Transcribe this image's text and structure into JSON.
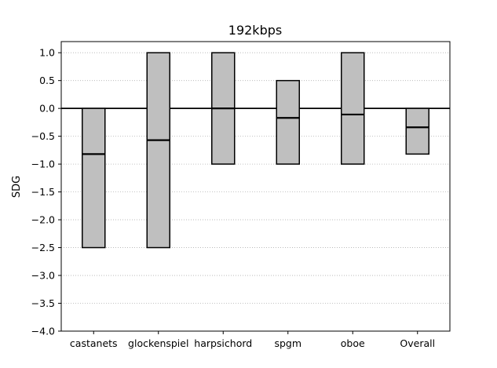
{
  "chart_data": {
    "type": "bar",
    "subtype": "range-with-median",
    "title": "192kbps",
    "xlabel": "",
    "ylabel": "SDG",
    "ylim": [
      -4.0,
      1.2
    ],
    "yticks": [
      1.0,
      0.5,
      0.0,
      -0.5,
      -1.0,
      -1.5,
      -2.0,
      -2.5,
      -3.0,
      -3.5,
      -4.0
    ],
    "ytick_labels": [
      "1.0",
      "0.5",
      "0.0",
      "−0.5",
      "−1.0",
      "−1.5",
      "−2.0",
      "−2.5",
      "−3.0",
      "−3.5",
      "−4.0"
    ],
    "grid": "y-dotted",
    "reference_line": 0.0,
    "categories": [
      "castanets",
      "glockenspiel",
      "harpsichord",
      "spgm",
      "oboe",
      "Overall"
    ],
    "bars": [
      {
        "low": -2.5,
        "high": 0.0,
        "median": -0.82
      },
      {
        "low": -2.5,
        "high": 1.0,
        "median": -0.57
      },
      {
        "low": -1.0,
        "high": 1.0,
        "median": 0.0
      },
      {
        "low": -1.0,
        "high": 0.5,
        "median": -0.17
      },
      {
        "low": -1.0,
        "high": 1.0,
        "median": -0.11
      },
      {
        "low": -0.82,
        "high": 0.0,
        "median": -0.34
      }
    ],
    "colors": {
      "bar_fill": "#bfbfbf",
      "bar_edge": "#000000",
      "grid": "#b0b0b0"
    }
  }
}
